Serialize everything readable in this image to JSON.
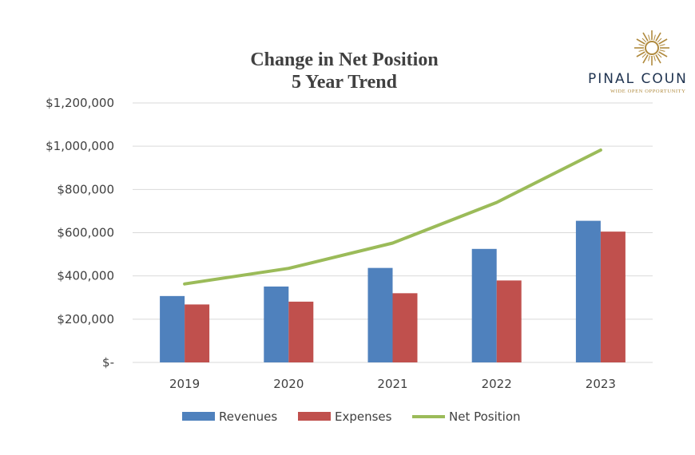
{
  "colors": {
    "revenues": "#4f81bd",
    "expenses": "#c0504d",
    "net_position": "#9bbb59",
    "grid": "#d9d9d9",
    "text": "#404040",
    "logo_blue": "#1f3350",
    "logo_gold": "#b08a3e"
  },
  "logo": {
    "name": "PINAL COUN",
    "tagline": "WIDE OPEN OPPORTUNITY",
    "icon": "sun-burst-icon"
  },
  "chart_data": {
    "type": "bar",
    "title": "Change in Net Position",
    "subtitle": "5 Year Trend",
    "categories": [
      "2019",
      "2020",
      "2021",
      "2022",
      "2023"
    ],
    "series": [
      {
        "name": "Revenues",
        "type": "bar",
        "values": [
          307000,
          351000,
          437000,
          525000,
          655000
        ]
      },
      {
        "name": "Expenses",
        "type": "bar",
        "values": [
          268000,
          281000,
          320000,
          379000,
          605000
        ]
      },
      {
        "name": "Net Position",
        "type": "line",
        "values": [
          363000,
          435000,
          552000,
          740000,
          982000
        ]
      }
    ],
    "ylim": [
      0,
      1200000
    ],
    "yticks": [
      0,
      200000,
      400000,
      600000,
      800000,
      1000000,
      1200000
    ],
    "ytick_labels": [
      "$-",
      "$200,000",
      "$400,000",
      "$600,000",
      "$800,000",
      "$1,000,000",
      "$1,200,000"
    ],
    "grid": true,
    "legend_position": "bottom",
    "xlabel": "",
    "ylabel": ""
  }
}
